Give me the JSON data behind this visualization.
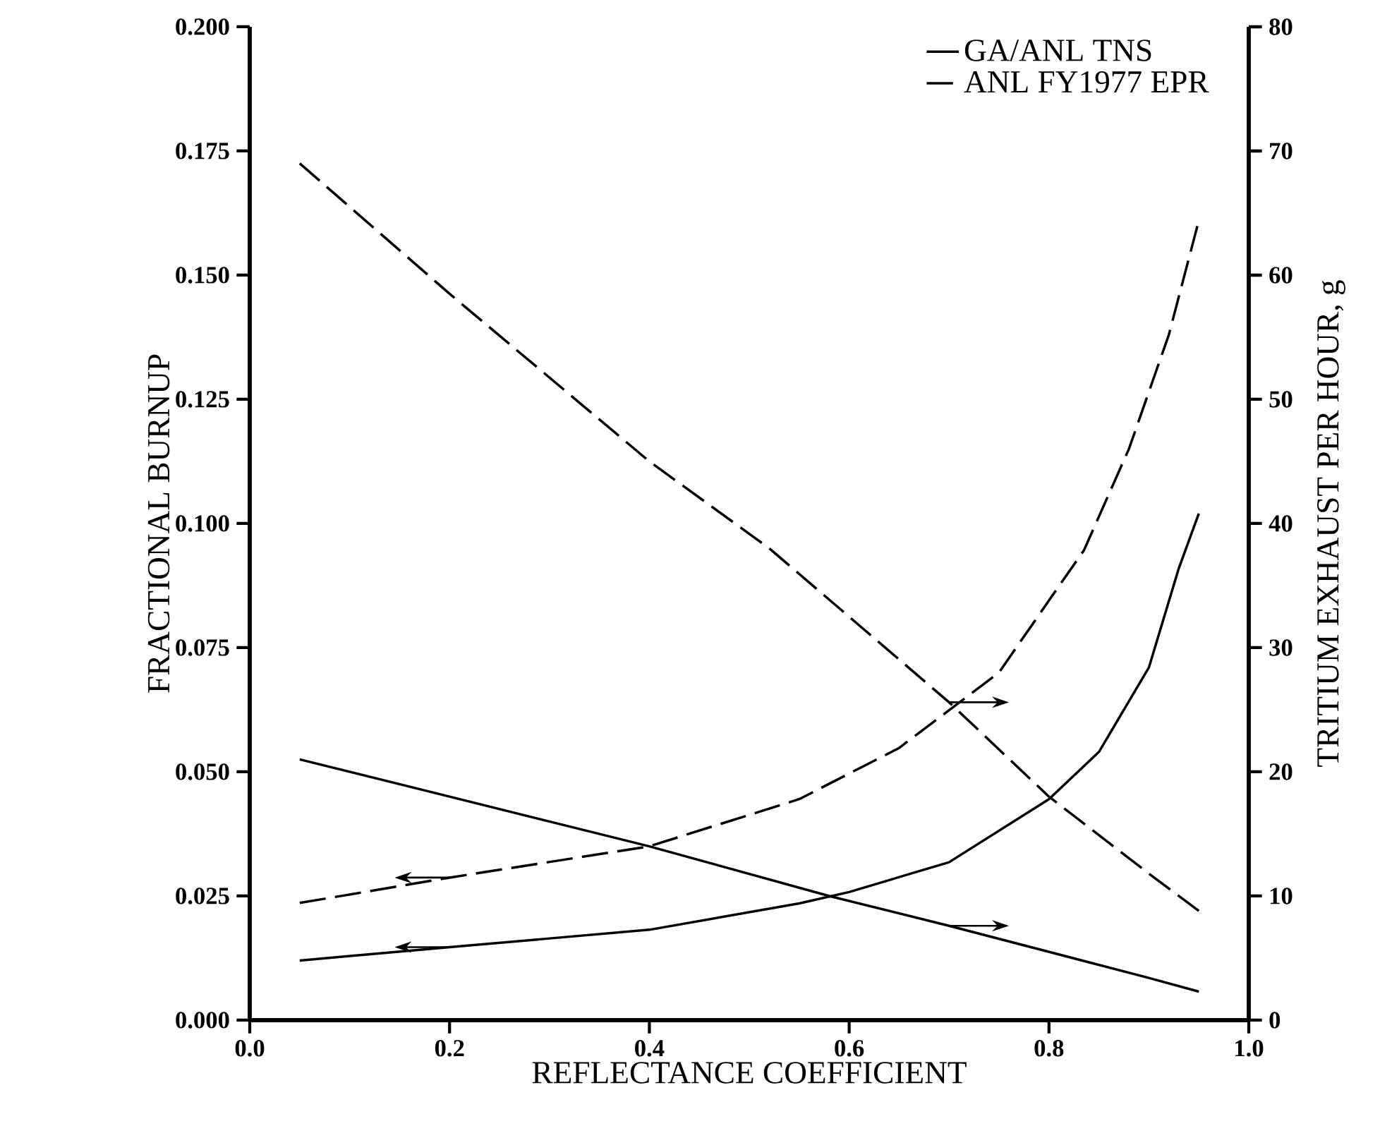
{
  "chart_data": {
    "type": "line",
    "xlabel": "REFLECTANCE COEFFICIENT",
    "ylabel": "FRACTIONAL BURNUP",
    "y2label": "TRITIUM EXHAUST PER HOUR, g",
    "xlim": [
      0,
      1
    ],
    "xticks": [
      {
        "value": 0,
        "label": "0.0"
      },
      0.2,
      0.4,
      0.6,
      0.8,
      {
        "value": 1,
        "label": "1.0"
      }
    ],
    "ylim": [
      0,
      0.2
    ],
    "yticks": [
      {
        "value": 0,
        "label": "0.000"
      },
      0.025,
      {
        "value": 0.05,
        "label": "0.050"
      },
      {
        "value": 0.075,
        "label": "0.075"
      },
      {
        "value": 0.1,
        "label": "0.100"
      },
      0.125,
      {
        "value": 0.15,
        "label": "0.150"
      },
      0.175,
      {
        "value": 0.2,
        "label": "0.200"
      }
    ],
    "y2lim": [
      0,
      80
    ],
    "y2ticks": [
      0,
      10,
      20,
      30,
      40,
      50,
      60,
      70,
      80
    ],
    "legend": "top right",
    "marker": "none",
    "series": [
      {
        "name": "GA/ANL TNS",
        "color": "#000000",
        "line_style": "solid",
        "x": [
          0.05,
          0.2,
          0.4,
          0.55,
          0.6,
          0.7,
          0.8,
          0.85,
          0.9,
          0.93,
          0.95
        ],
        "values": [
          0.012,
          0.0147,
          0.0182,
          0.0235,
          0.0258,
          0.0318,
          0.0445,
          0.054,
          0.071,
          0.091,
          0.102
        ]
      },
      {
        "name": "ANL FY1977 EPR",
        "color": "#000000",
        "line_style": "dashed",
        "x": [
          0.05,
          0.2,
          0.4,
          0.55,
          0.65,
          0.75,
          0.8,
          0.835,
          0.88,
          0.92,
          0.95
        ],
        "values": [
          0.0236,
          0.0287,
          0.035,
          0.0445,
          0.0548,
          0.07,
          0.0845,
          0.0946,
          0.115,
          0.138,
          0.161
        ]
      },
      {
        "color": "#000000",
        "line_style": "solid",
        "axis": "y2",
        "x": [
          0.05,
          0.2,
          0.4,
          0.58,
          0.7,
          0.8,
          0.9,
          0.95
        ],
        "values": [
          21,
          18,
          14,
          10,
          7.6,
          5.5,
          3.4,
          2.3
        ]
      },
      {
        "color": "#000000",
        "line_style": "dashed",
        "axis": "y2",
        "x": [
          0.05,
          0.2,
          0.4,
          0.52,
          0.7,
          0.8,
          0.9,
          0.95
        ],
        "values": [
          69,
          58.5,
          45,
          38,
          25.6,
          18,
          11.8,
          8.8
        ]
      }
    ]
  }
}
